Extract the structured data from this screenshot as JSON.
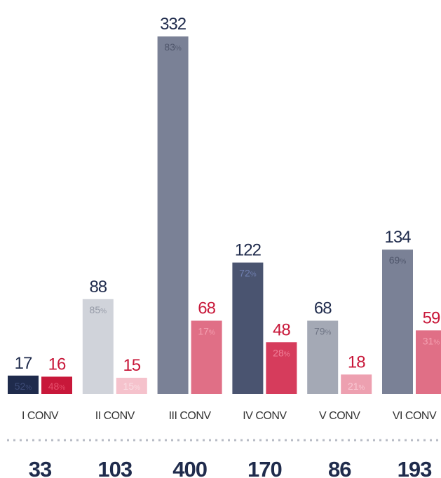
{
  "chart_data": {
    "type": "bar",
    "categories": [
      "I CONV",
      "II CONV",
      "III CONV",
      "IV CONV",
      "V CONV",
      "VI CONV"
    ],
    "series": [
      {
        "color": "#1f2b4c",
        "colors": [
          "#1f2b4c",
          "#d0d3da",
          "#7a8196",
          "#4a5470",
          "#a4a9b5",
          "#7a8196"
        ],
        "values": [
          17,
          88,
          332,
          122,
          68,
          134
        ],
        "share_labels": [
          "52%",
          "85%",
          "83%",
          "72%",
          "79%",
          "69%"
        ],
        "label_colors": [
          "#3e4c78",
          "#9499a6",
          "#4f566b",
          "#6f7fb0",
          "#6f7585",
          "#4f566b"
        ]
      },
      {
        "color": "#c8183a",
        "colors": [
          "#c8183a",
          "#f5c2cc",
          "#e06f86",
          "#d63c5c",
          "#eda0b0",
          "#e06f86"
        ],
        "values": [
          16,
          15,
          68,
          48,
          18,
          59
        ],
        "share_labels": [
          "48%",
          "15%",
          "17%",
          "28%",
          "21%",
          "31%"
        ],
        "label_colors": [
          "#e8506d",
          "#f9dde3",
          "#f4a0b1",
          "#f08098",
          "#f9c8d3",
          "#f4a0b1"
        ]
      }
    ],
    "totals": [
      33,
      103,
      400,
      170,
      86,
      193
    ],
    "totals_color": "#1f2b4c"
  }
}
